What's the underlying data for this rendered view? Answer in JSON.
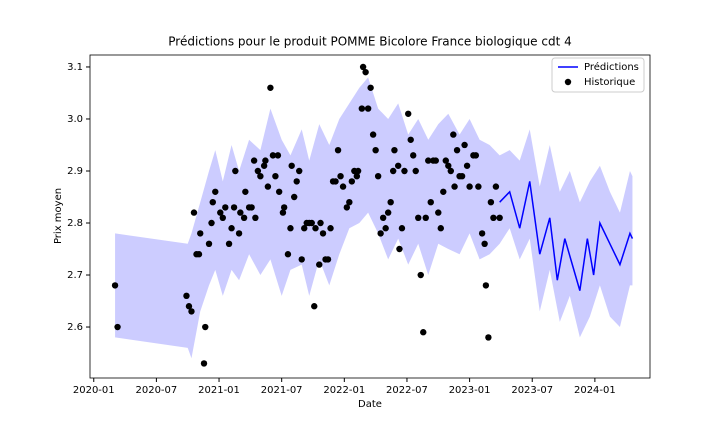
{
  "chart_data": {
    "type": "line",
    "title": "Prédictions pour le produit POMME Bicolore France biologique cdt 4",
    "xlabel": "Date",
    "ylabel": "Prix moyen",
    "xlim": [
      2019.97,
      2024.44
    ],
    "ylim": [
      2.502,
      3.123
    ],
    "xticks": [
      {
        "value": 2020.0,
        "label": "2020-01"
      },
      {
        "value": 2020.5,
        "label": "2020-07"
      },
      {
        "value": 2021.0,
        "label": "2021-01"
      },
      {
        "value": 2021.5,
        "label": "2021-07"
      },
      {
        "value": 2022.0,
        "label": "2022-01"
      },
      {
        "value": 2022.5,
        "label": "2022-07"
      },
      {
        "value": 2023.0,
        "label": "2023-01"
      },
      {
        "value": 2023.5,
        "label": "2023-07"
      },
      {
        "value": 2024.0,
        "label": "2024-01"
      }
    ],
    "yticks": [
      {
        "value": 2.6,
        "label": "2.6"
      },
      {
        "value": 2.7,
        "label": "2.7"
      },
      {
        "value": 2.8,
        "label": "2.8"
      },
      {
        "value": 2.9,
        "label": "2.9"
      },
      {
        "value": 3.0,
        "label": "3.0"
      },
      {
        "value": 3.1,
        "label": "3.1"
      }
    ],
    "legend": "upper right",
    "band": {
      "color": "#0000ff",
      "x": [
        2020.17,
        2020.75,
        2020.78,
        2020.85,
        2020.92,
        2020.97,
        2021.03,
        2021.1,
        2021.16,
        2021.24,
        2021.33,
        2021.41,
        2021.5,
        2021.57,
        2021.66,
        2021.72,
        2021.8,
        2021.88,
        2021.96,
        2022.04,
        2022.12,
        2022.19,
        2022.27,
        2022.35,
        2022.43,
        2022.51,
        2022.59,
        2022.67,
        2022.75,
        2022.83,
        2022.92,
        2023.0,
        2023.08,
        2023.16,
        2023.24,
        2023.32,
        2023.4,
        2023.48,
        2023.56,
        2023.64,
        2023.72,
        2023.8,
        2023.88,
        2023.96,
        2024.04,
        2024.12,
        2024.2,
        2024.28,
        2024.3
      ],
      "upper": [
        2.78,
        2.76,
        2.78,
        2.84,
        2.9,
        2.94,
        2.88,
        2.95,
        2.9,
        2.96,
        2.94,
        3.02,
        2.96,
        2.93,
        2.98,
        2.92,
        2.99,
        2.95,
        3.0,
        3.03,
        3.06,
        3.08,
        3.02,
        3.0,
        3.03,
        2.97,
        3.0,
        2.96,
        2.99,
        3.01,
        2.97,
        3.0,
        2.96,
        2.95,
        2.93,
        2.94,
        2.92,
        2.98,
        2.87,
        2.95,
        2.86,
        2.9,
        2.84,
        2.88,
        2.91,
        2.86,
        2.82,
        2.9,
        2.89
      ],
      "lower": [
        2.58,
        2.56,
        2.54,
        2.63,
        2.68,
        2.71,
        2.66,
        2.71,
        2.69,
        2.74,
        2.7,
        2.73,
        2.66,
        2.71,
        2.72,
        2.66,
        2.73,
        2.68,
        2.74,
        2.79,
        2.8,
        2.82,
        2.78,
        2.73,
        2.77,
        2.72,
        2.76,
        2.7,
        2.76,
        2.75,
        2.74,
        2.78,
        2.73,
        2.74,
        2.76,
        2.79,
        2.73,
        2.77,
        2.63,
        2.71,
        2.61,
        2.66,
        2.58,
        2.62,
        2.68,
        2.62,
        2.6,
        2.68,
        2.68
      ]
    },
    "series": [
      {
        "name": "Prédictions",
        "color": "#0000ff",
        "marker": "line",
        "x": [
          2023.24,
          2023.32,
          2023.4,
          2023.48,
          2023.56,
          2023.64,
          2023.7,
          2023.76,
          2023.82,
          2023.88,
          2023.94,
          2023.99,
          2024.04,
          2024.12,
          2024.2,
          2024.28,
          2024.3
        ],
        "values": [
          2.84,
          2.86,
          2.79,
          2.88,
          2.74,
          2.81,
          2.69,
          2.77,
          2.72,
          2.67,
          2.77,
          2.7,
          2.8,
          2.76,
          2.72,
          2.78,
          2.77
        ]
      },
      {
        "name": "Historique",
        "color": "#000000",
        "marker": "dot",
        "x": [
          2020.17,
          2020.19,
          2020.74,
          2020.76,
          2020.78,
          2020.8,
          2020.82,
          2020.84,
          2020.85,
          2020.89,
          2020.88,
          2020.92,
          2020.94,
          2020.95,
          2020.97,
          2021.01,
          2021.03,
          2021.05,
          2021.08,
          2021.1,
          2021.12,
          2021.13,
          2021.16,
          2021.17,
          2021.2,
          2021.21,
          2021.24,
          2021.26,
          2021.28,
          2021.29,
          2021.31,
          2021.33,
          2021.36,
          2021.37,
          2021.39,
          2021.41,
          2021.43,
          2021.45,
          2021.47,
          2021.48,
          2021.51,
          2021.52,
          2021.55,
          2021.57,
          2021.58,
          2021.6,
          2021.62,
          2021.64,
          2021.66,
          2021.68,
          2021.7,
          2021.72,
          2021.74,
          2021.76,
          2021.77,
          2021.8,
          2021.81,
          2021.83,
          2021.85,
          2021.87,
          2021.89,
          2021.91,
          2021.93,
          2021.95,
          2021.97,
          2021.99,
          2022.02,
          2022.04,
          2022.06,
          2022.08,
          2022.1,
          2022.11,
          2022.14,
          2022.15,
          2022.17,
          2022.19,
          2022.21,
          2022.23,
          2022.25,
          2022.27,
          2022.29,
          2022.31,
          2022.33,
          2022.35,
          2022.37,
          2022.39,
          2022.4,
          2022.43,
          2022.44,
          2022.46,
          2022.48,
          2022.51,
          2022.53,
          2022.55,
          2022.57,
          2022.59,
          2022.61,
          2022.63,
          2022.65,
          2022.67,
          2022.69,
          2022.71,
          2022.73,
          2022.75,
          2022.77,
          2022.79,
          2022.81,
          2022.83,
          2022.85,
          2022.87,
          2022.88,
          2022.9,
          2022.92,
          2022.94,
          2022.96,
          2022.98,
          2023.0,
          2023.03,
          2023.05,
          2023.07,
          2023.1,
          2023.12,
          2023.13,
          2023.15,
          2023.17,
          2023.19,
          2023.21,
          2023.24
        ],
        "values": [
          2.68,
          2.6,
          2.66,
          2.64,
          2.63,
          2.82,
          2.74,
          2.74,
          2.78,
          2.6,
          2.53,
          2.76,
          2.8,
          2.84,
          2.86,
          2.82,
          2.81,
          2.83,
          2.76,
          2.79,
          2.83,
          2.9,
          2.78,
          2.82,
          2.81,
          2.86,
          2.83,
          2.83,
          2.92,
          2.81,
          2.9,
          2.89,
          2.91,
          2.92,
          2.87,
          3.06,
          2.93,
          2.89,
          2.93,
          2.86,
          2.82,
          2.83,
          2.74,
          2.79,
          2.91,
          2.85,
          2.88,
          2.9,
          2.73,
          2.79,
          2.8,
          2.8,
          2.8,
          2.64,
          2.79,
          2.72,
          2.8,
          2.78,
          2.73,
          2.73,
          2.79,
          2.88,
          2.88,
          2.94,
          2.89,
          2.87,
          2.83,
          2.84,
          2.88,
          2.9,
          2.89,
          2.9,
          3.02,
          3.1,
          3.09,
          3.02,
          3.06,
          2.97,
          2.94,
          2.89,
          2.78,
          2.81,
          2.79,
          2.82,
          2.84,
          2.9,
          2.94,
          2.91,
          2.75,
          2.79,
          2.9,
          3.01,
          2.96,
          2.93,
          2.9,
          2.81,
          2.7,
          2.59,
          2.81,
          2.92,
          2.84,
          2.92,
          2.92,
          2.82,
          2.79,
          2.86,
          2.92,
          2.91,
          2.9,
          2.97,
          2.87,
          2.94,
          2.89,
          2.89,
          2.95,
          2.91,
          2.87,
          2.93,
          2.93,
          2.87,
          2.78,
          2.76,
          2.68,
          2.58,
          2.84,
          2.81,
          2.87,
          2.81
        ]
      }
    ]
  }
}
